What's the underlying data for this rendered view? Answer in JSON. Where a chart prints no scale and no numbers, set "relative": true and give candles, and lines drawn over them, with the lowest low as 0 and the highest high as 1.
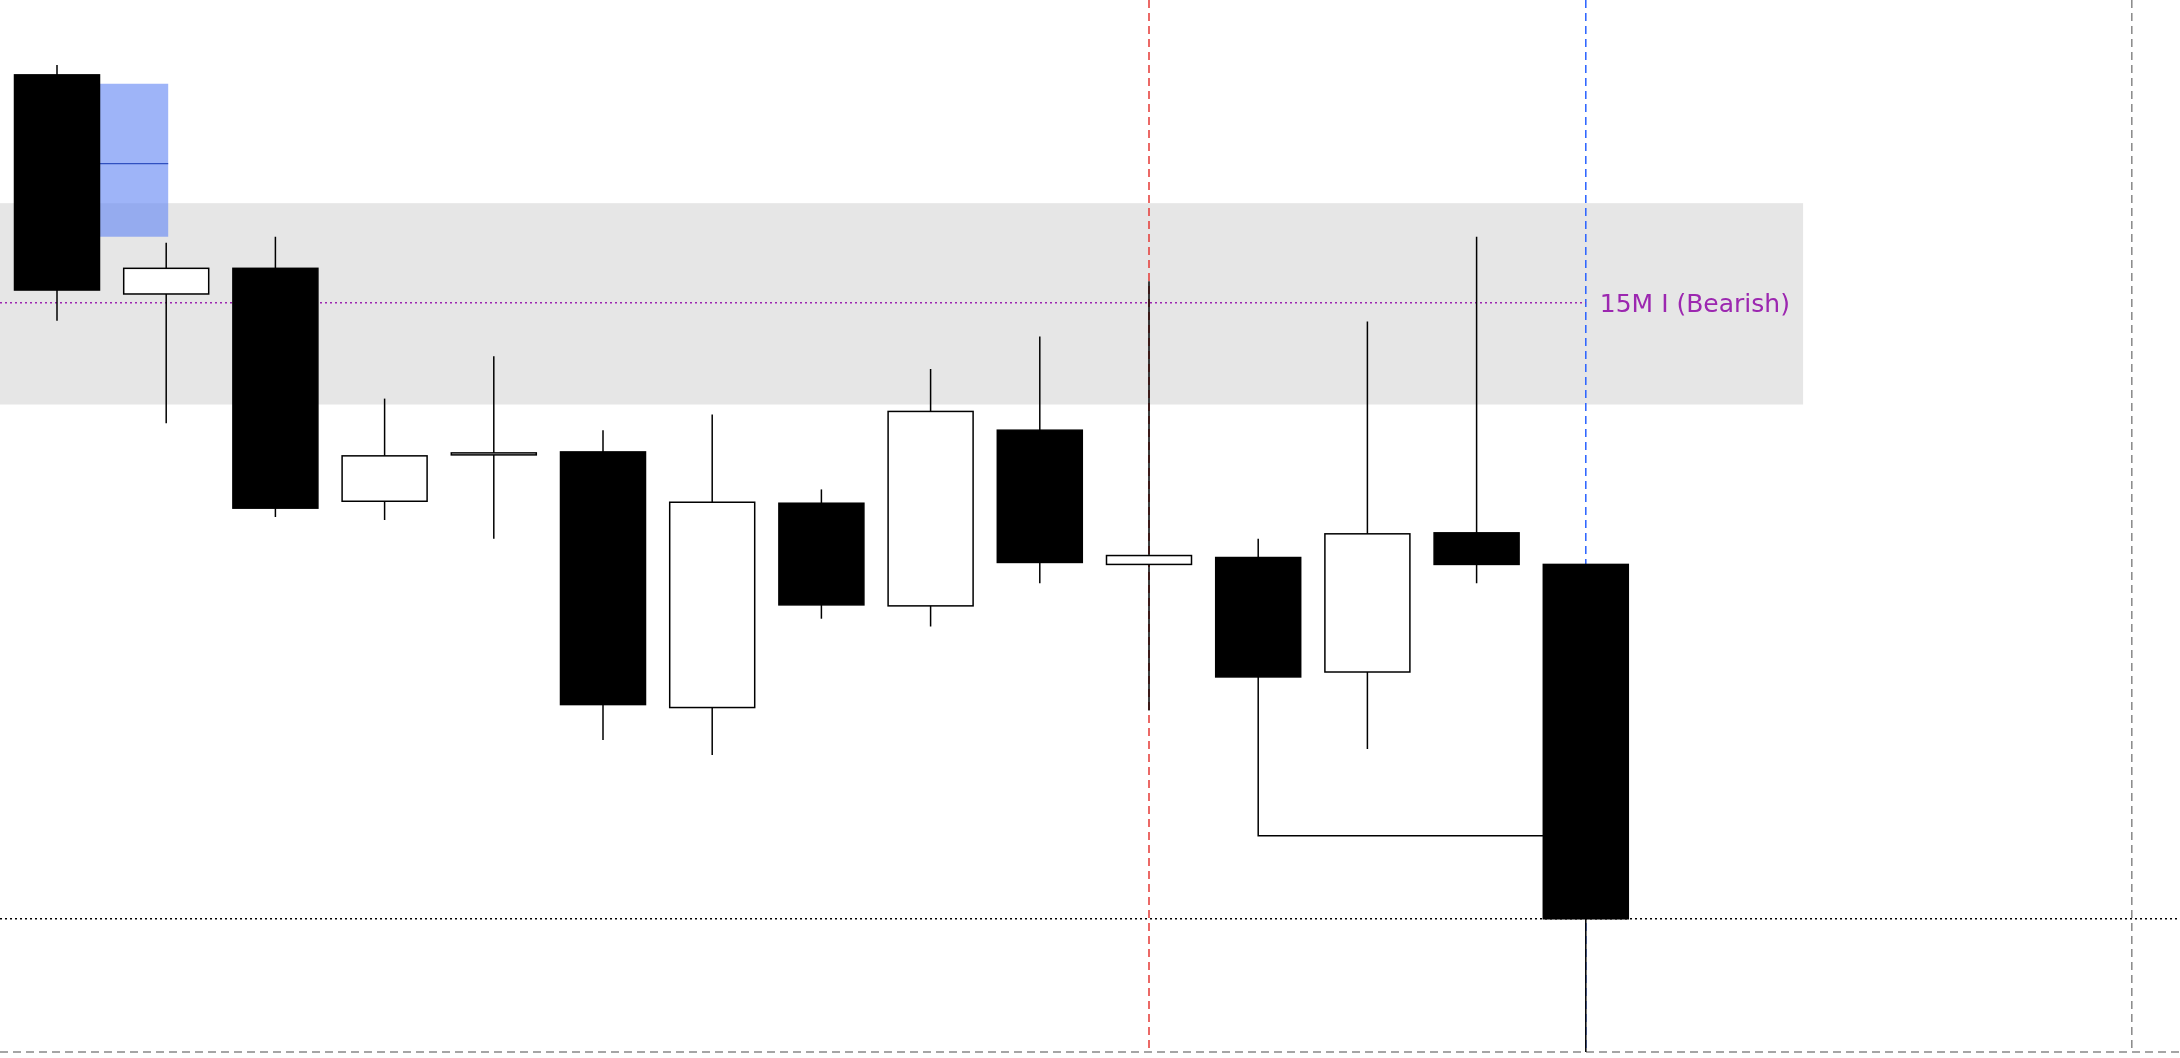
{
  "chart_data": {
    "type": "candlestick",
    "relative": true,
    "categories": [
      null,
      null,
      null,
      null,
      null,
      null,
      null,
      null,
      null,
      null,
      null,
      null,
      null,
      null,
      null
    ],
    "ohlc": [
      [
        0.99,
        1.0,
        0.741,
        0.772
      ],
      [
        0.768,
        0.82,
        0.637,
        0.794
      ],
      [
        0.794,
        0.826,
        0.542,
        0.551
      ],
      [
        0.558,
        0.662,
        0.539,
        0.604
      ],
      [
        0.607,
        0.705,
        0.52,
        0.607
      ],
      [
        0.608,
        0.63,
        0.316,
        0.352
      ],
      [
        0.349,
        0.646,
        0.301,
        0.557
      ],
      [
        0.556,
        0.57,
        0.439,
        0.453
      ],
      [
        0.452,
        0.692,
        0.431,
        0.649
      ],
      [
        0.63,
        0.725,
        0.475,
        0.496
      ],
      [
        0.494,
        0.781,
        0.346,
        0.503
      ],
      [
        0.501,
        0.52,
        0.38,
        0.38
      ],
      [
        0.385,
        0.74,
        0.307,
        0.525
      ],
      [
        0.526,
        0.826,
        0.475,
        0.494
      ],
      [
        0.494,
        0.494,
        0.0,
        0.135
      ]
    ],
    "bands": [
      {
        "axis": "y",
        "from": 0.656,
        "to": 0.86,
        "color": "#e6e6e6"
      }
    ],
    "ref_lines": [
      {
        "axis": "y",
        "value": 0.759,
        "label": "15M I (Bearish)",
        "color": "#9c27b0",
        "line_style": "dotted"
      },
      {
        "axis": "y",
        "value": 0.135,
        "color": "#000000",
        "line_style": "dotted"
      }
    ]
  }
}
